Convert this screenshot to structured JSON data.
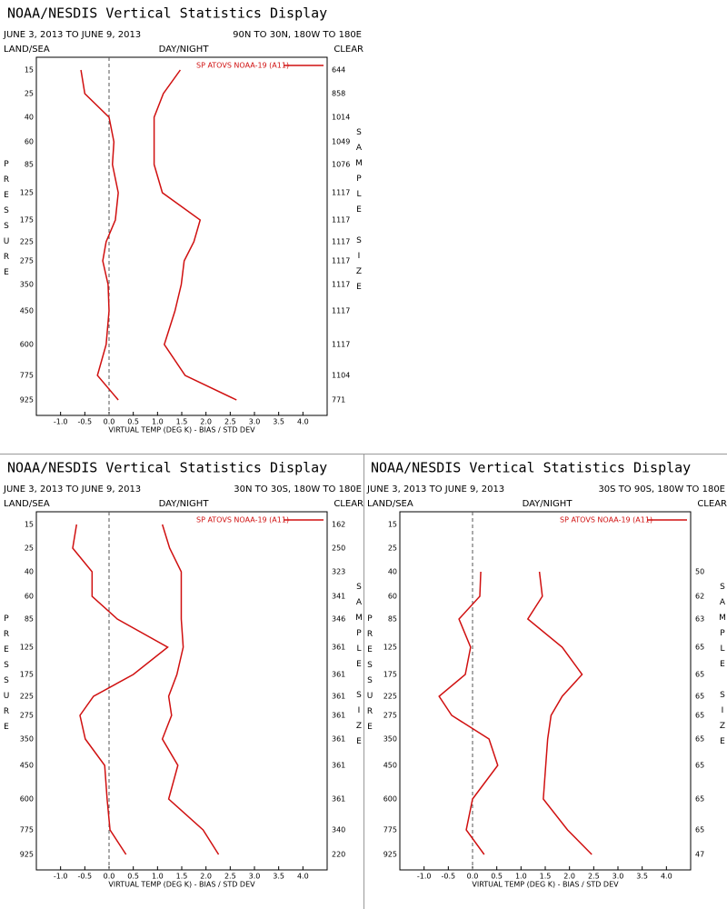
{
  "chart_data": [
    {
      "type": "line",
      "title": "NOAA/NESDIS Vertical Statistics Display",
      "subtitle": "JUNE 3, 2013 TO JUNE 9, 2013",
      "region": "90N TO 30N, 180W TO 180E",
      "land_sea": "LAND/SEA",
      "day_night": "DAY/NIGHT",
      "clear": "CLEAR",
      "ylabel": "PRESSURE",
      "y2label": "SAMPLE SIZE",
      "xlabel": "VIRTUAL TEMP (DEG K) - BIAS / STD DEV",
      "legend": "SP ATOVS NOAA-19 (A11)",
      "categories": [
        15,
        25,
        40,
        60,
        85,
        125,
        175,
        225,
        275,
        350,
        450,
        600,
        775,
        925
      ],
      "sample_sizes": [
        644,
        858,
        1014,
        1049,
        1076,
        1117,
        1117,
        1117,
        1117,
        1117,
        1117,
        1117,
        1104,
        771
      ],
      "series": [
        {
          "color": "#d01010",
          "values": [
            -0.58,
            -0.5,
            0.0,
            0.1,
            0.07,
            0.19,
            0.13,
            -0.06,
            -0.13,
            -0.02,
            0.0,
            -0.06,
            -0.24,
            0.19
          ]
        },
        {
          "color": "#d01010",
          "values": [
            1.47,
            1.12,
            0.93,
            0.93,
            0.93,
            1.1,
            1.88,
            1.75,
            1.55,
            1.49,
            1.36,
            1.14,
            1.57,
            2.63
          ]
        }
      ],
      "reference_line": 0,
      "xlim": [
        -1.5,
        4.5
      ],
      "xticks": [
        {
          "value": -1,
          "label": "-1.0"
        },
        {
          "value": -0.5,
          "label": "-0.5"
        },
        {
          "value": 0,
          "label": "0.0"
        },
        {
          "value": 0.5,
          "label": "0.5"
        },
        {
          "value": 1,
          "label": "1.0"
        },
        {
          "value": 1.5,
          "label": "1.5"
        },
        {
          "value": 2,
          "label": "2.0"
        },
        {
          "value": 2.5,
          "label": "2.5"
        },
        {
          "value": 3,
          "label": "3.0"
        },
        {
          "value": 3.5,
          "label": "3.5"
        },
        {
          "value": 4,
          "label": "4.0"
        }
      ]
    },
    {
      "type": "line",
      "title": "NOAA/NESDIS Vertical Statistics Display",
      "subtitle": "JUNE 3, 2013 TO JUNE 9, 2013",
      "region": "30N TO 30S, 180W TO 180E",
      "land_sea": "LAND/SEA",
      "day_night": "DAY/NIGHT",
      "clear": "CLEAR",
      "ylabel": "PRESSURE",
      "y2label": "SAMPLE SIZE",
      "xlabel": "VIRTUAL TEMP (DEG K) - BIAS / STD DEV",
      "legend": "SP ATOVS NOAA-19 (A11)",
      "categories": [
        15,
        25,
        40,
        60,
        85,
        125,
        175,
        225,
        275,
        350,
        450,
        600,
        775,
        925
      ],
      "sample_sizes": [
        162,
        250,
        323,
        341,
        346,
        361,
        361,
        361,
        361,
        361,
        361,
        361,
        340,
        220
      ],
      "series": [
        {
          "color": "#d01010",
          "values": [
            -0.67,
            -0.75,
            -0.35,
            -0.35,
            0.17,
            1.21,
            0.5,
            -0.32,
            -0.6,
            -0.49,
            -0.09,
            -0.04,
            0.02,
            0.35
          ]
        },
        {
          "color": "#d01010",
          "values": [
            1.1,
            1.25,
            1.49,
            1.49,
            1.49,
            1.53,
            1.4,
            1.23,
            1.29,
            1.1,
            1.42,
            1.23,
            1.94,
            2.26
          ]
        }
      ],
      "reference_line": 0,
      "xlim": [
        -1.5,
        4.5
      ],
      "xticks": [
        {
          "value": -1,
          "label": "-1.0"
        },
        {
          "value": -0.5,
          "label": "-0.5"
        },
        {
          "value": 0,
          "label": "0.0"
        },
        {
          "value": 0.5,
          "label": "0.5"
        },
        {
          "value": 1,
          "label": "1.0"
        },
        {
          "value": 1.5,
          "label": "1.5"
        },
        {
          "value": 2,
          "label": "2.0"
        },
        {
          "value": 2.5,
          "label": "2.5"
        },
        {
          "value": 3,
          "label": "3.0"
        },
        {
          "value": 3.5,
          "label": "3.5"
        },
        {
          "value": 4,
          "label": "4.0"
        }
      ]
    },
    {
      "type": "line",
      "title": "NOAA/NESDIS Vertical Statistics Display",
      "subtitle": "JUNE 3, 2013 TO JUNE 9, 2013",
      "region": "30S TO 90S, 180W TO 180E",
      "land_sea": "LAND/SEA",
      "day_night": "DAY/NIGHT",
      "clear": "CLEAR",
      "ylabel": "PRESSURE",
      "y2label": "SAMPLE SIZE",
      "xlabel": "VIRTUAL TEMP (DEG K) - BIAS / STD DEV",
      "legend": "SP ATOVS NOAA-19 (A11)",
      "categories": [
        15,
        25,
        40,
        60,
        85,
        125,
        175,
        225,
        275,
        350,
        450,
        600,
        775,
        925
      ],
      "sample_sizes": [
        null,
        null,
        50,
        62,
        63,
        65,
        65,
        65,
        65,
        65,
        65,
        65,
        65,
        47
      ],
      "series": [
        {
          "color": "#d01010",
          "values": [
            null,
            null,
            0.17,
            0.15,
            -0.28,
            -0.04,
            -0.15,
            -0.69,
            -0.43,
            0.34,
            0.52,
            0.0,
            -0.13,
            0.24
          ]
        },
        {
          "color": "#d01010",
          "values": [
            null,
            null,
            1.38,
            1.44,
            1.14,
            1.85,
            2.26,
            1.85,
            1.62,
            1.55,
            1.51,
            1.46,
            1.96,
            2.46
          ]
        }
      ],
      "reference_line": 0,
      "xlim": [
        -1.5,
        4.5
      ],
      "xticks": [
        {
          "value": -1,
          "label": "-1.0"
        },
        {
          "value": -0.5,
          "label": "-0.5"
        },
        {
          "value": 0,
          "label": "0.0"
        },
        {
          "value": 0.5,
          "label": "0.5"
        },
        {
          "value": 1,
          "label": "1.0"
        },
        {
          "value": 1.5,
          "label": "1.5"
        },
        {
          "value": 2,
          "label": "2.0"
        },
        {
          "value": 2.5,
          "label": "2.5"
        },
        {
          "value": 3,
          "label": "3.0"
        },
        {
          "value": 3.5,
          "label": "3.5"
        },
        {
          "value": 4,
          "label": "4.0"
        }
      ]
    }
  ]
}
